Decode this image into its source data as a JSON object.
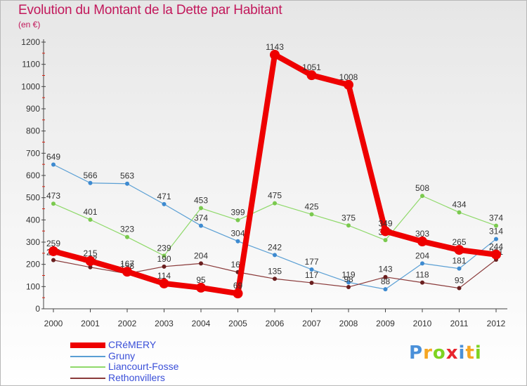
{
  "title": "Evolution du Montant de la Dette par Habitant",
  "unit_label": "(en €)",
  "logo": {
    "text": "Proxiti",
    "letters": [
      {
        "ch": "P",
        "color": "#4a90d9"
      },
      {
        "ch": "r",
        "color": "#f5a623"
      },
      {
        "ch": "o",
        "color": "#7ed321"
      },
      {
        "ch": "x",
        "color": "#e8252d"
      },
      {
        "ch": "i",
        "color": "#4a90d9"
      },
      {
        "ch": "t",
        "color": "#f5a623"
      },
      {
        "ch": "i",
        "color": "#7ed321"
      }
    ]
  },
  "chart_data": {
    "type": "line",
    "title": "Evolution du Montant de la Dette par Habitant",
    "ylabel": "(en €)",
    "xlabel": "",
    "ylim": [
      0,
      1200
    ],
    "y_ticks": [
      0,
      100,
      200,
      300,
      400,
      500,
      600,
      700,
      800,
      900,
      1000,
      1100,
      1200
    ],
    "grid": false,
    "legend_position": "bottom-left",
    "categories": [
      "2000",
      "2001",
      "2002",
      "2003",
      "2004",
      "2005",
      "2006",
      "2007",
      "2008",
      "2009",
      "2010",
      "2011",
      "2012"
    ],
    "series": [
      {
        "name": "CRéMERY",
        "color": "#ee0000",
        "emphasis": true,
        "values": [
          259,
          215,
          167,
          114,
          95,
          69,
          1143,
          1051,
          1008,
          349,
          303,
          265,
          244
        ]
      },
      {
        "name": "Gruny",
        "color": "#5a9fd4",
        "marker": "#3d8ad0",
        "values": [
          649,
          566,
          563,
          471,
          374,
          304,
          242,
          177,
          119,
          88,
          204,
          181,
          314
        ]
      },
      {
        "name": "Liancourt-Fosse",
        "color": "#8fd96a",
        "marker": "#7ac94e",
        "values": [
          473,
          401,
          323,
          239,
          453,
          399,
          475,
          425,
          375,
          309,
          508,
          434,
          374
        ]
      },
      {
        "name": "Rethonvillers",
        "color": "#8a3a3a",
        "marker": "#6a1f1f",
        "values": [
          219,
          187,
          158,
          190,
          204,
          165,
          135,
          117,
          98,
          143,
          118,
          93,
          221
        ]
      }
    ]
  }
}
